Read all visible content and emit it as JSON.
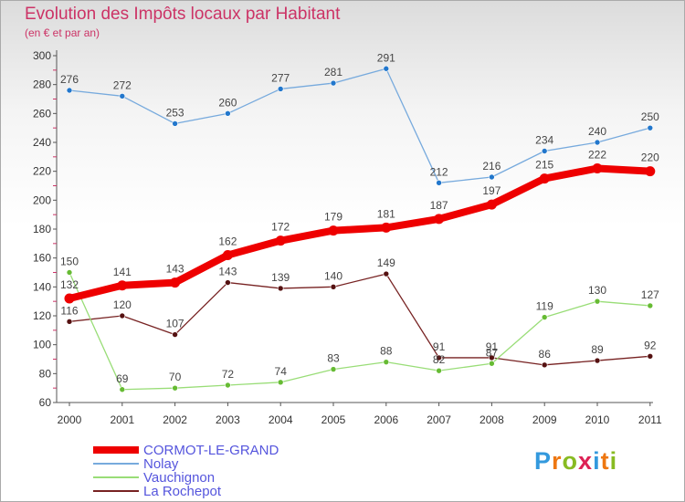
{
  "header": {
    "title": "Evolution des Impôts locaux par Habitant",
    "subtitle": "(en € et par an)"
  },
  "logo": {
    "letters": [
      "P",
      "r",
      "o",
      "x",
      "i",
      "t",
      "i"
    ],
    "colors": [
      "#3399dd",
      "#ee7711",
      "#88bb22",
      "#dd2255",
      "#3399dd",
      "#ee7711",
      "#88bb22"
    ]
  },
  "chart_data": {
    "type": "line",
    "title": "Evolution des Impôts locaux par Habitant",
    "subtitle": "(en € et par an)",
    "xlabel": "",
    "ylabel": "",
    "x": [
      "2000",
      "2001",
      "2002",
      "2003",
      "2004",
      "2005",
      "2006",
      "2007",
      "2008",
      "2009",
      "2010",
      "2011"
    ],
    "ylim": [
      60,
      300
    ],
    "yticks": [
      60,
      80,
      100,
      120,
      140,
      160,
      180,
      200,
      220,
      240,
      260,
      280,
      300
    ],
    "grid": false,
    "legend_position": "bottom-left",
    "series": [
      {
        "name": "CORMOT-LE-GRAND",
        "color": "#ee0000",
        "values": [
          132,
          141,
          143,
          162,
          172,
          179,
          181,
          187,
          197,
          215,
          222,
          220
        ],
        "labels": [
          "132",
          "141",
          "143",
          "162",
          "172",
          "179",
          "181",
          "187",
          "197",
          "215",
          "222",
          "220"
        ]
      },
      {
        "name": "Nolay",
        "color": "#77aadd",
        "values": [
          276,
          272,
          253,
          260,
          277,
          281,
          291,
          212,
          216,
          234,
          240,
          250
        ],
        "labels": [
          "276",
          "272",
          "253",
          "260",
          "277",
          "281",
          "291",
          "212",
          "216",
          "234",
          "240",
          "250"
        ]
      },
      {
        "name": "Vauchignon",
        "color": "#99dd77",
        "values": [
          150,
          69,
          70,
          72,
          74,
          83,
          88,
          82,
          87,
          119,
          130,
          127
        ],
        "labels": [
          "150",
          "69",
          "70",
          "72",
          "74",
          "83",
          "88",
          "82",
          "87",
          "119",
          "130",
          "127"
        ]
      },
      {
        "name": "La Rochepot",
        "color": "#772222",
        "values": [
          116,
          120,
          107,
          143,
          139,
          140,
          149,
          91,
          91,
          86,
          89,
          92
        ],
        "labels": [
          "116",
          "120",
          "107",
          "143",
          "139",
          "140",
          "149",
          "91",
          "91",
          "86",
          "89",
          "92"
        ]
      }
    ]
  }
}
